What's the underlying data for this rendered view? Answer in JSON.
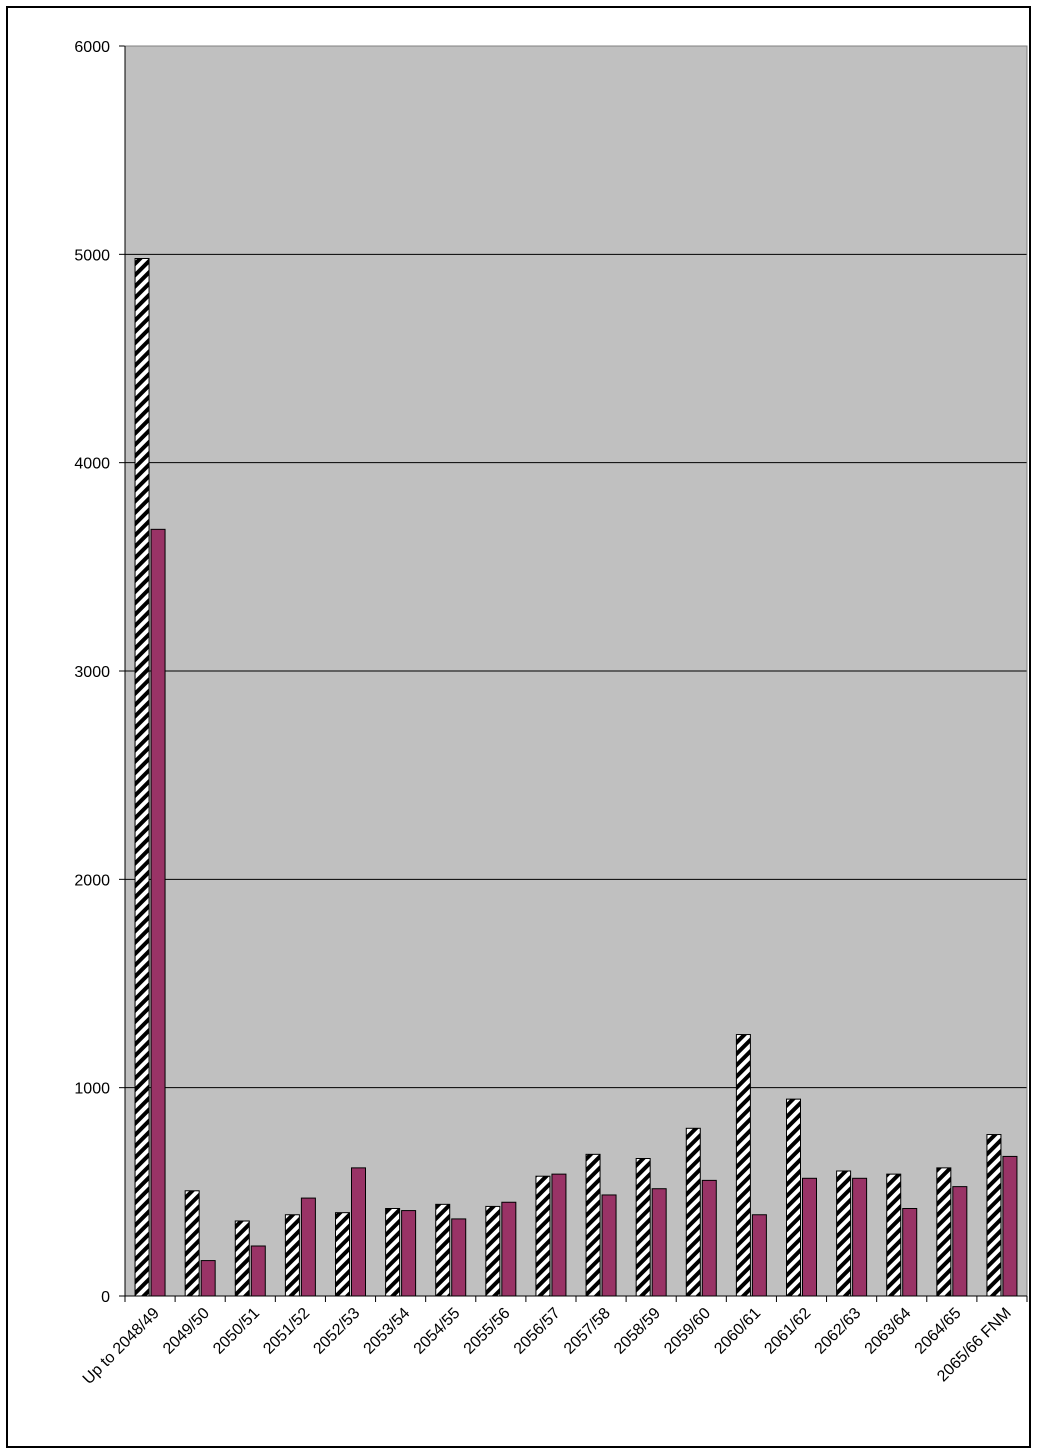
{
  "chart_data": {
    "type": "bar",
    "title": "",
    "xlabel": "",
    "ylabel": "",
    "ylim": [
      0,
      6000
    ],
    "yticks": [
      0,
      1000,
      2000,
      3000,
      4000,
      5000,
      6000
    ],
    "grid": true,
    "legend": "none",
    "categories": [
      "Up to 2048/49",
      "2049/50",
      "2050/51",
      "2051/52",
      "2052/53",
      "2053/54",
      "2054/55",
      "2055/56",
      "2056/57",
      "2057/58",
      "2058/59",
      "2059/60",
      "2060/61",
      "2061/62",
      "2062/63",
      "2063/64",
      "2064/65",
      "2065/66 FNM"
    ],
    "series": [
      {
        "values": [
          4980,
          505,
          360,
          390,
          400,
          420,
          440,
          430,
          575,
          680,
          660,
          805,
          1255,
          945,
          600,
          585,
          615,
          775
        ],
        "color": "#ffffff",
        "pattern": "diagonal-hatch"
      },
      {
        "values": [
          3680,
          170,
          240,
          470,
          615,
          410,
          370,
          450,
          585,
          485,
          515,
          555,
          390,
          565,
          565,
          420,
          525,
          670
        ],
        "color": "#993366"
      }
    ],
    "plot_background": "#c0c0c0"
  }
}
